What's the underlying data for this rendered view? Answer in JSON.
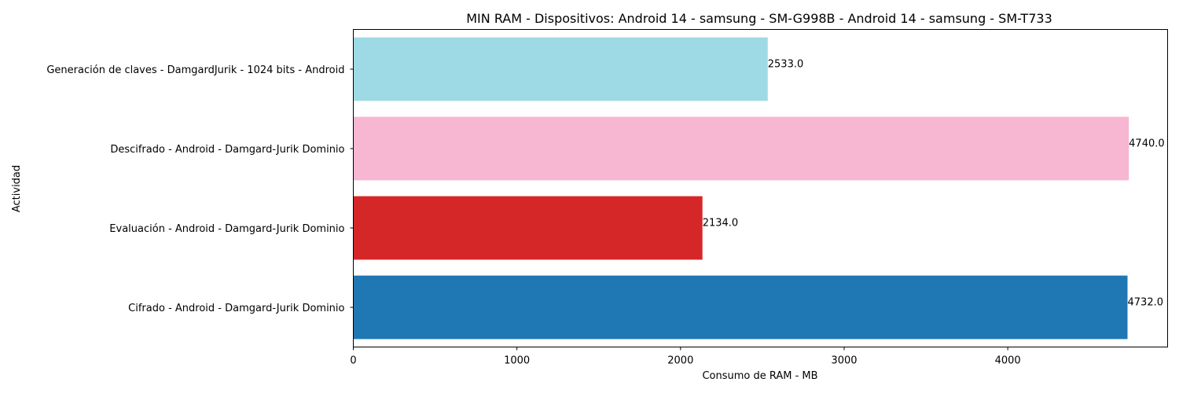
{
  "chart_data": {
    "type": "bar",
    "orientation": "horizontal",
    "title": "MIN RAM - Dispositivos: Android 14 - samsung - SM-G998B - Android 14 - samsung - SM-T733",
    "xlabel": "Consumo de RAM - MB",
    "ylabel": "Actividad",
    "categories": [
      "Generación de claves - DamgardJurik - 1024 bits - Android",
      "Descifrado - Android - Damgard-Jurik Dominio",
      "Evaluación - Android - Damgard-Jurik Dominio",
      "Cifrado - Android - Damgard-Jurik Dominio"
    ],
    "values": [
      2533.0,
      4740.0,
      2134.0,
      4732.0
    ],
    "value_labels": [
      "2533.0",
      "4740.0",
      "2134.0",
      "4732.0"
    ],
    "colors": [
      "#9edae5",
      "#f7b6d2",
      "#d62728",
      "#1f77b4"
    ],
    "xlim": [
      0,
      4977
    ],
    "xticks": [
      0,
      1000,
      2000,
      3000,
      4000
    ],
    "xtick_labels": [
      "0",
      "1000",
      "2000",
      "3000",
      "4000"
    ],
    "grid": false,
    "legend": "none"
  }
}
